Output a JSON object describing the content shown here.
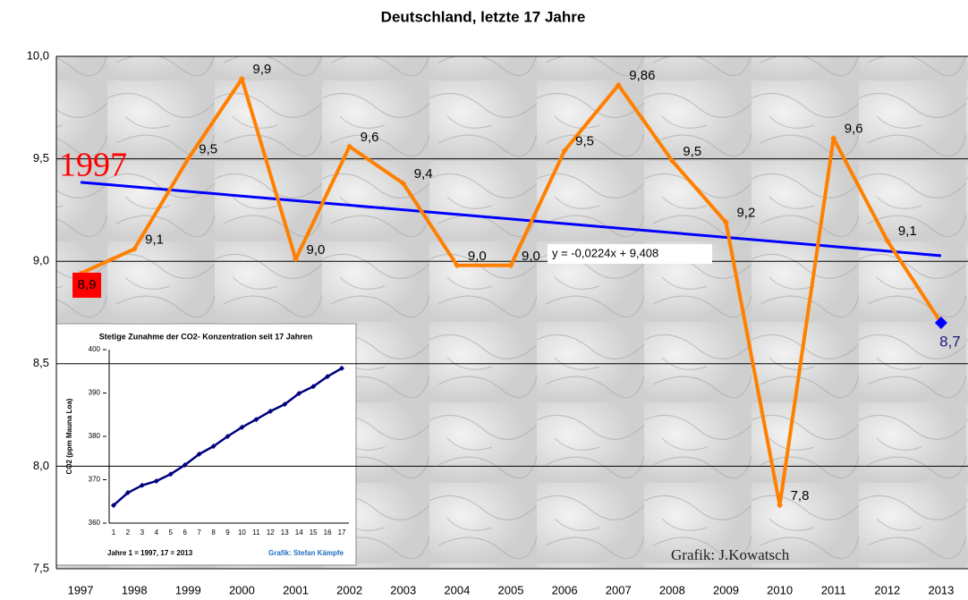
{
  "chart_data": [
    {
      "type": "line",
      "title": "Deutschland, letzte 17 Jahre",
      "categories": [
        "1997",
        "1998",
        "1999",
        "2000",
        "2001",
        "2002",
        "2003",
        "2004",
        "2005",
        "2006",
        "2007",
        "2008",
        "2009",
        "2010",
        "2011",
        "2012",
        "2013"
      ],
      "values": [
        8.94,
        9.06,
        9.5,
        9.89,
        9.01,
        9.56,
        9.38,
        8.98,
        8.98,
        9.54,
        9.86,
        9.49,
        9.19,
        7.81,
        9.6,
        9.1,
        8.7
      ],
      "value_labels": [
        "8,9",
        "9,1",
        "9,5",
        "9,9",
        "9,0",
        "9,6",
        "9,4",
        "9,0",
        "9,0",
        "9,5",
        "9,86",
        "9,5",
        "9,2",
        "7,8",
        "9,6",
        "9,1",
        "8,7"
      ],
      "color": "#ff8000",
      "ylim": [
        7.5,
        10
      ],
      "yticks": [
        {
          "value": 7.5,
          "label": "7,5"
        },
        {
          "value": 8,
          "label": "8,0"
        },
        {
          "value": 8.5,
          "label": "8,5"
        },
        {
          "value": 9,
          "label": "9,0"
        },
        {
          "value": 9.5,
          "label": "9,5"
        },
        {
          "value": 10,
          "label": "10,0"
        }
      ],
      "grid": true,
      "trendline": {
        "slope": -0.0224,
        "intercept": 9.408,
        "label": "y = -0,0224x + 9,408",
        "color": "#0000ff"
      },
      "annotations": [
        "1997",
        "Grafik: J.Kowatsch"
      ]
    },
    {
      "type": "line",
      "title": "Stetige Zunahme der CO2- Konzentration seit 17 Jahren",
      "ylabel": "CO2 (ppm Mauna Loa)",
      "categories": [
        "1",
        "2",
        "3",
        "4",
        "5",
        "6",
        "7",
        "8",
        "9",
        "10",
        "11",
        "12",
        "13",
        "14",
        "15",
        "16",
        "17"
      ],
      "values": [
        364.1,
        367.0,
        368.7,
        369.7,
        371.3,
        373.4,
        375.9,
        377.7,
        380.0,
        382.1,
        383.9,
        385.8,
        387.4,
        389.9,
        391.5,
        393.8,
        395.7
      ],
      "color": "#000080",
      "ylim": [
        360,
        400
      ],
      "yticks": [
        360,
        370,
        380,
        390,
        400
      ],
      "grid": false,
      "annotations": [
        "Jahre 1 = 1997, 17 = 2013",
        "Grafik: Stefan Kämpfe"
      ]
    }
  ]
}
